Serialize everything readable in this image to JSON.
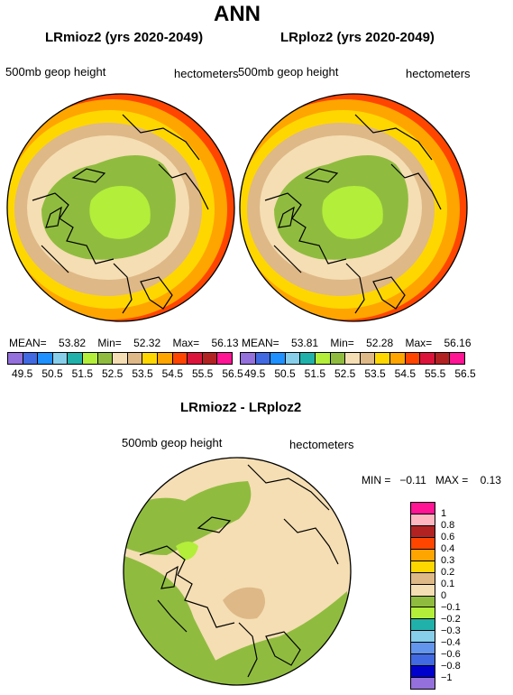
{
  "title": "ANN",
  "left_panel": {
    "title": "LRmioz2 (yrs 2020-2049)",
    "field_label": "500mb geop height",
    "units_label": "hectometers",
    "stats": {
      "mean_label": "MEAN=",
      "mean": "53.82",
      "min_label": "Min=",
      "min": "52.32",
      "max_label": "Max=",
      "max": "56.13"
    }
  },
  "right_panel": {
    "title": "LRploz2 (yrs 2020-2049)",
    "field_label": "500mb geop height",
    "units_label": "hectometers",
    "stats": {
      "mean_label": "MEAN=",
      "mean": "53.81",
      "min_label": "Min=",
      "min": "52.28",
      "max_label": "Max=",
      "max": "56.16"
    }
  },
  "top_colorbar": {
    "ticks": [
      "49.5",
      "50.5",
      "51.5",
      "52.5",
      "53.5",
      "54.5",
      "55.5",
      "56.5"
    ],
    "colors": [
      "#9370db",
      "#4169e1",
      "#1e90ff",
      "#87ceeb",
      "#20b2aa",
      "#b3ee3a",
      "#8fbc3f",
      "#f5deb3",
      "#deb887",
      "#ffd700",
      "#ffa500",
      "#ff4500",
      "#dc143c",
      "#b22222",
      "#ff1493"
    ]
  },
  "diff_panel": {
    "title": "LRmioz2 - LRploz2",
    "field_label": "500mb geop height",
    "units_label": "hectometers",
    "stats": {
      "min_label": "MIN =",
      "min": "−0.11",
      "max_label": "MAX =",
      "max": "0.13"
    }
  },
  "diff_colorbar": {
    "ticks": [
      "1",
      "0.8",
      "0.6",
      "0.4",
      "0.3",
      "0.2",
      "0.1",
      "0",
      "−0.1",
      "−0.2",
      "−0.3",
      "−0.4",
      "−0.6",
      "−0.8",
      "−1"
    ],
    "colors": [
      "#ff1493",
      "#ffb6c1",
      "#b22222",
      "#ff4500",
      "#ffa500",
      "#ffd700",
      "#deb887",
      "#f5deb3",
      "#8fbc3f",
      "#b3ee3a",
      "#20b2aa",
      "#87ceeb",
      "#6495ed",
      "#4169e1",
      "#0000cd",
      "#9370db"
    ]
  }
}
